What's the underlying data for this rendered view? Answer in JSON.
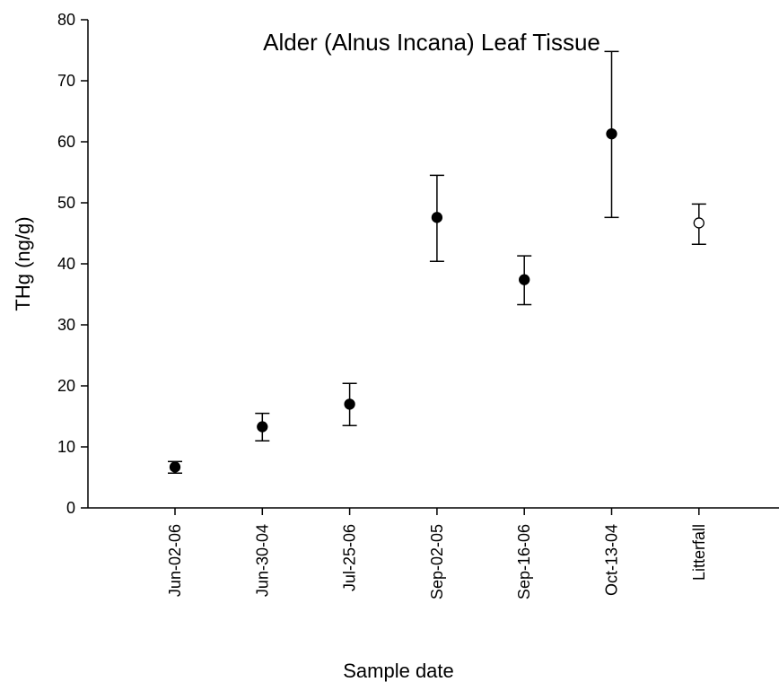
{
  "chart_data": {
    "type": "scatter",
    "title": "Alder (Alnus Incana) Leaf Tissue",
    "xlabel": "Sample date",
    "ylabel": "THg (ng/g)",
    "ylim": [
      0,
      80
    ],
    "yticks": [
      0,
      10,
      20,
      30,
      40,
      50,
      60,
      70,
      80
    ],
    "grid": false,
    "categories": [
      "Jun-02-06",
      "Jun-30-04",
      "Jul-25-06",
      "Sep-02-05",
      "Sep-16-06",
      "Oct-13-04",
      "Litterfall"
    ],
    "values": [
      6.7,
      13.3,
      17.0,
      47.6,
      37.4,
      61.3,
      46.7
    ],
    "error_low": [
      5.7,
      11.0,
      13.5,
      40.4,
      33.3,
      47.6,
      43.2
    ],
    "error_high": [
      7.6,
      15.5,
      20.4,
      54.5,
      41.3,
      74.8,
      49.8
    ],
    "marker_fill": [
      "filled",
      "filled",
      "filled",
      "filled",
      "filled",
      "filled",
      "open"
    ]
  }
}
